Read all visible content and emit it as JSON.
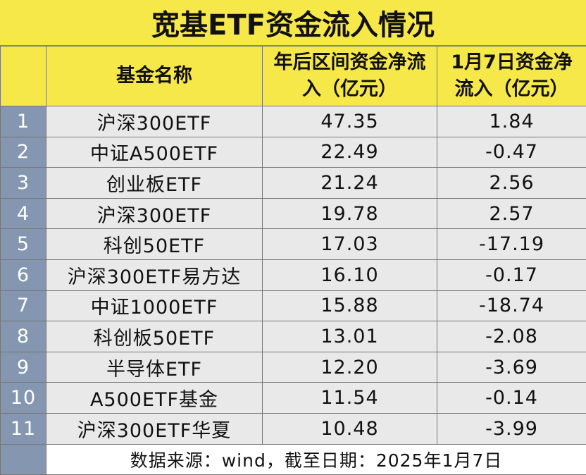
{
  "header": {
    "title": "宽基ETF资金流入情况"
  },
  "table": {
    "columns": [
      "基金名称",
      "年后区间资金净流入（亿元）",
      "1月7日资金净流入（亿元）"
    ],
    "rows": [
      [
        "1",
        "沪深300ETF",
        "47.35",
        "1.84"
      ],
      [
        "2",
        "中证A500ETF",
        "22.49",
        "-0.47"
      ],
      [
        "3",
        "创业板ETF",
        "21.24",
        "2.56"
      ],
      [
        "4",
        "沪深300ETF",
        "19.78",
        "2.57"
      ],
      [
        "5",
        "科创50ETF",
        "17.03",
        "-17.19"
      ],
      [
        "6",
        "沪深300ETF易方达",
        "16.10",
        "-0.17"
      ],
      [
        "7",
        "中证1000ETF",
        "15.88",
        "-18.74"
      ],
      [
        "8",
        "科创板50ETF",
        "13.01",
        "-2.08"
      ],
      [
        "9",
        "半导体ETF",
        "12.20",
        "-3.69"
      ],
      [
        "10",
        "A500ETF基金",
        "11.54",
        "-0.14"
      ],
      [
        "11",
        "沪深300ETF华夏",
        "10.48",
        "-3.99"
      ]
    ]
  },
  "footer": {
    "note": "数据来源：wind，截至日期：2025年1月7日"
  }
}
